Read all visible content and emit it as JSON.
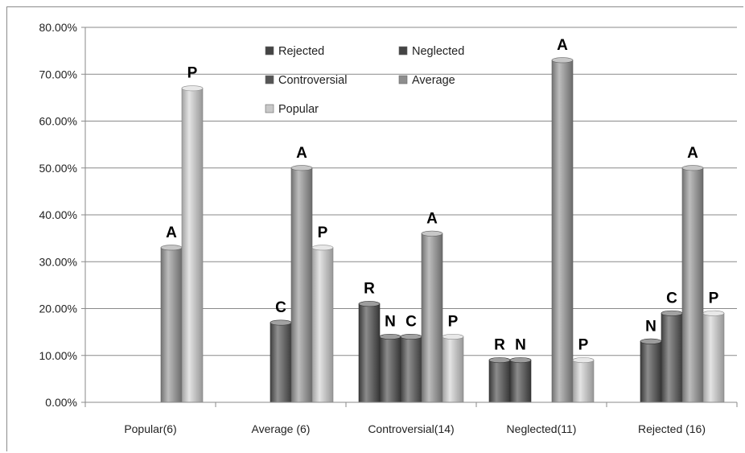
{
  "chart_data": {
    "type": "bar",
    "categories": [
      "Popular(6)",
      "Average (6)",
      "Controversial(14)",
      "Neglected(11)",
      "Rejected (16)"
    ],
    "ylim": [
      0,
      0.8
    ],
    "yticks": [
      "0.00%",
      "10.00%",
      "20.00%",
      "30.00%",
      "40.00%",
      "50.00%",
      "60.00%",
      "70.00%",
      "80.00%"
    ],
    "grid": true,
    "legend_position": "top-center",
    "series": [
      {
        "name": "Rejected",
        "color": "#4d4d4d",
        "values": [
          0,
          0,
          0.21,
          0.09,
          0
        ]
      },
      {
        "name": "Neglected",
        "color": "#4d4d4d",
        "values": [
          0,
          0,
          0.14,
          0.09,
          0.13
        ]
      },
      {
        "name": "Controversial",
        "color": "#565656",
        "values": [
          0,
          0.17,
          0.14,
          0,
          0.19
        ]
      },
      {
        "name": "Average",
        "color": "#999999",
        "values": [
          0.33,
          0.5,
          0.36,
          0.73,
          0.5
        ]
      },
      {
        "name": "Popular",
        "color": "#d6d6d6",
        "values": [
          0.67,
          0.33,
          0.14,
          0.09,
          0.19
        ]
      }
    ],
    "bar_labels": [
      [
        "",
        "",
        "R",
        "R",
        ""
      ],
      [
        "",
        "",
        "N",
        "N",
        "N"
      ],
      [
        "",
        "C",
        "C",
        "",
        "C"
      ],
      [
        "A",
        "A",
        "A",
        "A",
        "A"
      ],
      [
        "P",
        "P",
        "P",
        "P",
        "P"
      ]
    ],
    "legend": [
      {
        "label": "Rejected",
        "icon": "#444444"
      },
      {
        "label": "Neglected",
        "icon": "#444444"
      },
      {
        "label": "Controversial",
        "icon": "#555555"
      },
      {
        "label": "Average",
        "icon": "#8e8e8e"
      },
      {
        "label": "Popular",
        "icon": "#c8c8c8"
      }
    ]
  }
}
